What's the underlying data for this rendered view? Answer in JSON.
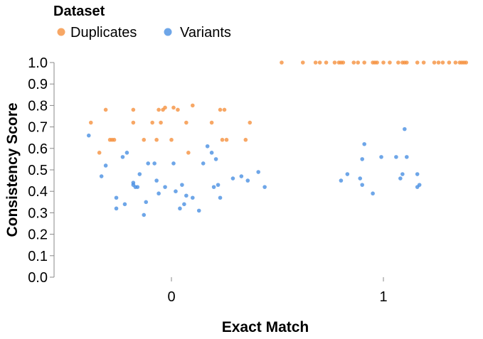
{
  "legend": {
    "title": "Dataset",
    "entries": [
      {
        "label": "Duplicates",
        "color": "#f58518"
      },
      {
        "label": "Variants",
        "color": "#4c78a8"
      }
    ]
  },
  "chart_data": {
    "type": "scatter",
    "title": "",
    "xlabel": "Exact Match",
    "ylabel": "Consistency Score",
    "x_ticks": [
      "0",
      "1"
    ],
    "y_ticks": [
      "0.0",
      "0.1",
      "0.2",
      "0.3",
      "0.4",
      "0.5",
      "0.6",
      "0.7",
      "0.8",
      "0.9",
      "1.0"
    ],
    "xlim": [
      -0.55,
      1.45
    ],
    "ylim": [
      0,
      1
    ],
    "x_jittered": true,
    "grid": false,
    "legend_position": "top-left",
    "series": [
      {
        "name": "Duplicates",
        "color": "#f58518",
        "points": [
          {
            "x": -0.38,
            "y": 0.72
          },
          {
            "x": -0.34,
            "y": 0.58
          },
          {
            "x": -0.31,
            "y": 0.78
          },
          {
            "x": -0.29,
            "y": 0.64
          },
          {
            "x": -0.28,
            "y": 0.64
          },
          {
            "x": -0.27,
            "y": 0.64
          },
          {
            "x": -0.18,
            "y": 0.72
          },
          {
            "x": -0.18,
            "y": 0.78
          },
          {
            "x": -0.13,
            "y": 0.64
          },
          {
            "x": -0.09,
            "y": 0.72
          },
          {
            "x": -0.07,
            "y": 0.64
          },
          {
            "x": -0.06,
            "y": 0.78
          },
          {
            "x": -0.05,
            "y": 0.72
          },
          {
            "x": -0.04,
            "y": 0.78
          },
          {
            "x": -0.03,
            "y": 0.79
          },
          {
            "x": 0.0,
            "y": 0.64
          },
          {
            "x": 0.01,
            "y": 0.79
          },
          {
            "x": 0.03,
            "y": 0.78
          },
          {
            "x": 0.07,
            "y": 0.72
          },
          {
            "x": 0.08,
            "y": 0.58
          },
          {
            "x": 0.1,
            "y": 0.8
          },
          {
            "x": 0.19,
            "y": 0.72
          },
          {
            "x": 0.23,
            "y": 0.78
          },
          {
            "x": 0.24,
            "y": 0.64
          },
          {
            "x": 0.25,
            "y": 0.78
          },
          {
            "x": 0.26,
            "y": 0.64
          },
          {
            "x": 0.35,
            "y": 0.64
          },
          {
            "x": 0.37,
            "y": 0.72
          },
          {
            "x": 0.52,
            "y": 1.0
          },
          {
            "x": 0.62,
            "y": 1.0
          },
          {
            "x": 0.68,
            "y": 1.0
          },
          {
            "x": 0.7,
            "y": 1.0
          },
          {
            "x": 0.73,
            "y": 1.0
          },
          {
            "x": 0.77,
            "y": 1.0
          },
          {
            "x": 0.79,
            "y": 1.0
          },
          {
            "x": 0.8,
            "y": 1.0
          },
          {
            "x": 0.81,
            "y": 1.0
          },
          {
            "x": 0.86,
            "y": 1.0
          },
          {
            "x": 0.88,
            "y": 1.0
          },
          {
            "x": 0.91,
            "y": 1.0
          },
          {
            "x": 0.95,
            "y": 1.0
          },
          {
            "x": 0.96,
            "y": 1.0
          },
          {
            "x": 0.97,
            "y": 1.0
          },
          {
            "x": 1.0,
            "y": 1.0
          },
          {
            "x": 1.03,
            "y": 1.0
          },
          {
            "x": 1.07,
            "y": 1.0
          },
          {
            "x": 1.09,
            "y": 1.0
          },
          {
            "x": 1.1,
            "y": 1.0
          },
          {
            "x": 1.11,
            "y": 1.0
          },
          {
            "x": 1.16,
            "y": 1.0
          },
          {
            "x": 1.19,
            "y": 1.0
          },
          {
            "x": 1.24,
            "y": 1.0
          },
          {
            "x": 1.26,
            "y": 1.0
          },
          {
            "x": 1.28,
            "y": 1.0
          },
          {
            "x": 1.31,
            "y": 1.0
          },
          {
            "x": 1.34,
            "y": 1.0
          },
          {
            "x": 1.36,
            "y": 1.0
          },
          {
            "x": 1.37,
            "y": 1.0
          },
          {
            "x": 1.38,
            "y": 1.0
          },
          {
            "x": 1.39,
            "y": 1.0
          }
        ]
      },
      {
        "name": "Variants",
        "color": "#4c78a8",
        "points": [
          {
            "x": -0.39,
            "y": 0.66
          },
          {
            "x": -0.33,
            "y": 0.47
          },
          {
            "x": -0.31,
            "y": 0.52
          },
          {
            "x": -0.26,
            "y": 0.32
          },
          {
            "x": -0.26,
            "y": 0.37
          },
          {
            "x": -0.23,
            "y": 0.56
          },
          {
            "x": -0.21,
            "y": 0.58
          },
          {
            "x": -0.22,
            "y": 0.34
          },
          {
            "x": -0.18,
            "y": 0.44
          },
          {
            "x": -0.18,
            "y": 0.43
          },
          {
            "x": -0.17,
            "y": 0.42
          },
          {
            "x": -0.16,
            "y": 0.42
          },
          {
            "x": -0.15,
            "y": 0.48
          },
          {
            "x": -0.13,
            "y": 0.29
          },
          {
            "x": -0.12,
            "y": 0.35
          },
          {
            "x": -0.11,
            "y": 0.53
          },
          {
            "x": -0.08,
            "y": 0.53
          },
          {
            "x": -0.07,
            "y": 0.45
          },
          {
            "x": -0.06,
            "y": 0.39
          },
          {
            "x": -0.03,
            "y": 0.42
          },
          {
            "x": 0.01,
            "y": 0.53
          },
          {
            "x": 0.02,
            "y": 0.4
          },
          {
            "x": 0.04,
            "y": 0.32
          },
          {
            "x": 0.05,
            "y": 0.43
          },
          {
            "x": 0.06,
            "y": 0.34
          },
          {
            "x": 0.07,
            "y": 0.38
          },
          {
            "x": 0.1,
            "y": 0.37
          },
          {
            "x": 0.13,
            "y": 0.31
          },
          {
            "x": 0.15,
            "y": 0.53
          },
          {
            "x": 0.17,
            "y": 0.61
          },
          {
            "x": 0.19,
            "y": 0.58
          },
          {
            "x": 0.2,
            "y": 0.42
          },
          {
            "x": 0.21,
            "y": 0.55
          },
          {
            "x": 0.22,
            "y": 0.43
          },
          {
            "x": 0.23,
            "y": 0.37
          },
          {
            "x": 0.29,
            "y": 0.46
          },
          {
            "x": 0.33,
            "y": 0.47
          },
          {
            "x": 0.36,
            "y": 0.45
          },
          {
            "x": 0.41,
            "y": 0.49
          },
          {
            "x": 0.44,
            "y": 0.42
          },
          {
            "x": 0.8,
            "y": 0.45
          },
          {
            "x": 0.83,
            "y": 0.48
          },
          {
            "x": 0.89,
            "y": 0.46
          },
          {
            "x": 0.9,
            "y": 0.43
          },
          {
            "x": 0.9,
            "y": 0.55
          },
          {
            "x": 0.91,
            "y": 0.62
          },
          {
            "x": 0.95,
            "y": 0.39
          },
          {
            "x": 0.99,
            "y": 0.56
          },
          {
            "x": 1.06,
            "y": 0.56
          },
          {
            "x": 1.08,
            "y": 0.46
          },
          {
            "x": 1.09,
            "y": 0.48
          },
          {
            "x": 1.1,
            "y": 0.69
          },
          {
            "x": 1.11,
            "y": 0.56
          },
          {
            "x": 1.16,
            "y": 0.48
          },
          {
            "x": 1.16,
            "y": 0.42
          },
          {
            "x": 1.17,
            "y": 0.43
          }
        ]
      }
    ]
  }
}
